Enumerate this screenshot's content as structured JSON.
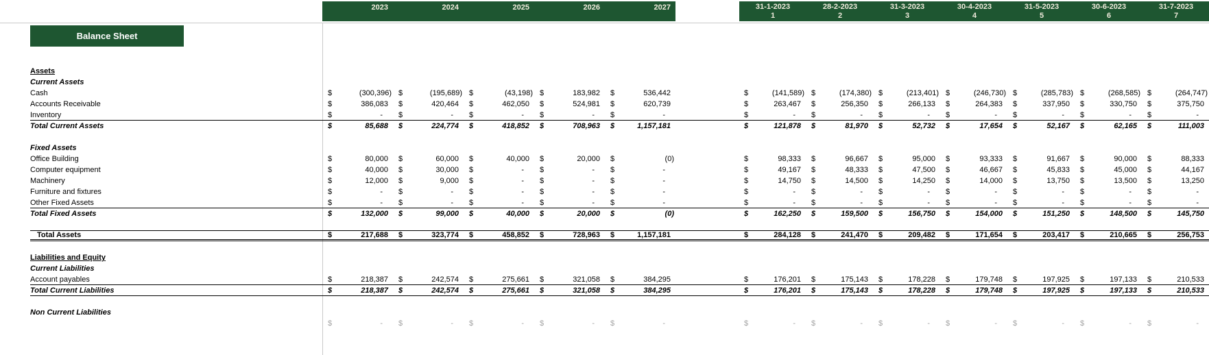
{
  "sheet": {
    "title": "Balance Sheet"
  },
  "colors": {
    "header_green": "#1E5631",
    "header_text": "#F0EBDC",
    "title_text": "#FFFFFF",
    "grid_line": "#C9C9C9"
  },
  "currency_symbol": "$",
  "year_columns": [
    "2023",
    "2024",
    "2025",
    "2026",
    "2027"
  ],
  "month_columns": [
    {
      "date": "31-1-2023",
      "index": "1"
    },
    {
      "date": "28-2-2023",
      "index": "2"
    },
    {
      "date": "31-3-2023",
      "index": "3"
    },
    {
      "date": "30-4-2023",
      "index": "4"
    },
    {
      "date": "31-5-2023",
      "index": "5"
    },
    {
      "date": "30-6-2023",
      "index": "6"
    },
    {
      "date": "31-7-2023",
      "index": "7"
    }
  ],
  "rows": [
    {
      "kind": "section",
      "label": "Assets"
    },
    {
      "kind": "subsection",
      "label": "Current Assets"
    },
    {
      "kind": "item",
      "label": "Cash",
      "years": [
        "(300,396)",
        "(195,689)",
        "(43,198)",
        "183,982",
        "536,442"
      ],
      "months": [
        "(141,589)",
        "(174,380)",
        "(213,401)",
        "(246,730)",
        "(285,783)",
        "(268,585)",
        "(264,747)"
      ]
    },
    {
      "kind": "item",
      "label": "Accounts Receivable",
      "years": [
        "386,083",
        "420,464",
        "462,050",
        "524,981",
        "620,739"
      ],
      "months": [
        "263,467",
        "256,350",
        "266,133",
        "264,383",
        "337,950",
        "330,750",
        "375,750"
      ]
    },
    {
      "kind": "item",
      "rule_below": true,
      "label": "Inventory",
      "years": [
        "-",
        "-",
        "-",
        "-",
        "-"
      ],
      "months": [
        "-",
        "-",
        "-",
        "-",
        "-",
        "-",
        "-"
      ]
    },
    {
      "kind": "total",
      "label": "Total Current Assets",
      "years": [
        "85,688",
        "224,774",
        "418,852",
        "708,963",
        "1,157,181"
      ],
      "months": [
        "121,878",
        "81,970",
        "52,732",
        "17,654",
        "52,167",
        "62,165",
        "111,003"
      ]
    },
    {
      "kind": "blank"
    },
    {
      "kind": "subsection",
      "label": "Fixed Assets"
    },
    {
      "kind": "item",
      "label": "Office Building",
      "years": [
        "80,000",
        "60,000",
        "40,000",
        "20,000",
        "(0)"
      ],
      "months": [
        "98,333",
        "96,667",
        "95,000",
        "93,333",
        "91,667",
        "90,000",
        "88,333"
      ]
    },
    {
      "kind": "item",
      "label": "Computer equipment",
      "years": [
        "40,000",
        "30,000",
        "-",
        "-",
        "-"
      ],
      "months": [
        "49,167",
        "48,333",
        "47,500",
        "46,667",
        "45,833",
        "45,000",
        "44,167"
      ]
    },
    {
      "kind": "item",
      "label": "Machinery",
      "years": [
        "12,000",
        "9,000",
        "-",
        "-",
        "-"
      ],
      "months": [
        "14,750",
        "14,500",
        "14,250",
        "14,000",
        "13,750",
        "13,500",
        "13,250"
      ]
    },
    {
      "kind": "item",
      "label": "Furniture and fixtures",
      "years": [
        "-",
        "-",
        "-",
        "-",
        "-"
      ],
      "months": [
        "-",
        "-",
        "-",
        "-",
        "-",
        "-",
        "-"
      ]
    },
    {
      "kind": "item",
      "rule_below": true,
      "label": "Other Fixed Assets",
      "years": [
        "-",
        "-",
        "-",
        "-",
        "-"
      ],
      "months": [
        "-",
        "-",
        "-",
        "-",
        "-",
        "-",
        "-"
      ]
    },
    {
      "kind": "total",
      "label": "Total Fixed Assets",
      "years": [
        "132,000",
        "99,000",
        "40,000",
        "20,000",
        "(0)"
      ],
      "months": [
        "162,250",
        "159,500",
        "156,750",
        "154,000",
        "151,250",
        "148,500",
        "145,750"
      ]
    },
    {
      "kind": "blank"
    },
    {
      "kind": "grand",
      "label": "Total Assets",
      "years": [
        "217,688",
        "323,774",
        "458,852",
        "728,963",
        "1,157,181"
      ],
      "months": [
        "284,128",
        "241,470",
        "209,482",
        "171,654",
        "203,417",
        "210,665",
        "256,753"
      ]
    },
    {
      "kind": "blank"
    },
    {
      "kind": "section",
      "label": "Liabilities and Equity"
    },
    {
      "kind": "subsection",
      "label": "Current Liabilities"
    },
    {
      "kind": "item",
      "rule_below": true,
      "label": "Account payables",
      "years": [
        "218,387",
        "242,574",
        "275,661",
        "321,058",
        "384,295"
      ],
      "months": [
        "176,201",
        "175,143",
        "178,228",
        "179,748",
        "197,925",
        "197,133",
        "210,533"
      ]
    },
    {
      "kind": "total",
      "rule_below": true,
      "label": "Total Current Liabilities",
      "years": [
        "218,387",
        "242,574",
        "275,661",
        "321,058",
        "384,295"
      ],
      "months": [
        "176,201",
        "175,143",
        "178,228",
        "179,748",
        "197,925",
        "197,133",
        "210,533"
      ]
    },
    {
      "kind": "blank"
    },
    {
      "kind": "subsection",
      "label": "Non Current Liabilities"
    },
    {
      "kind": "partial",
      "years": [
        "-",
        "-",
        "-",
        "-",
        "-"
      ],
      "months": [
        "-",
        "-",
        "-",
        "-",
        "-",
        "-",
        "-"
      ]
    }
  ]
}
